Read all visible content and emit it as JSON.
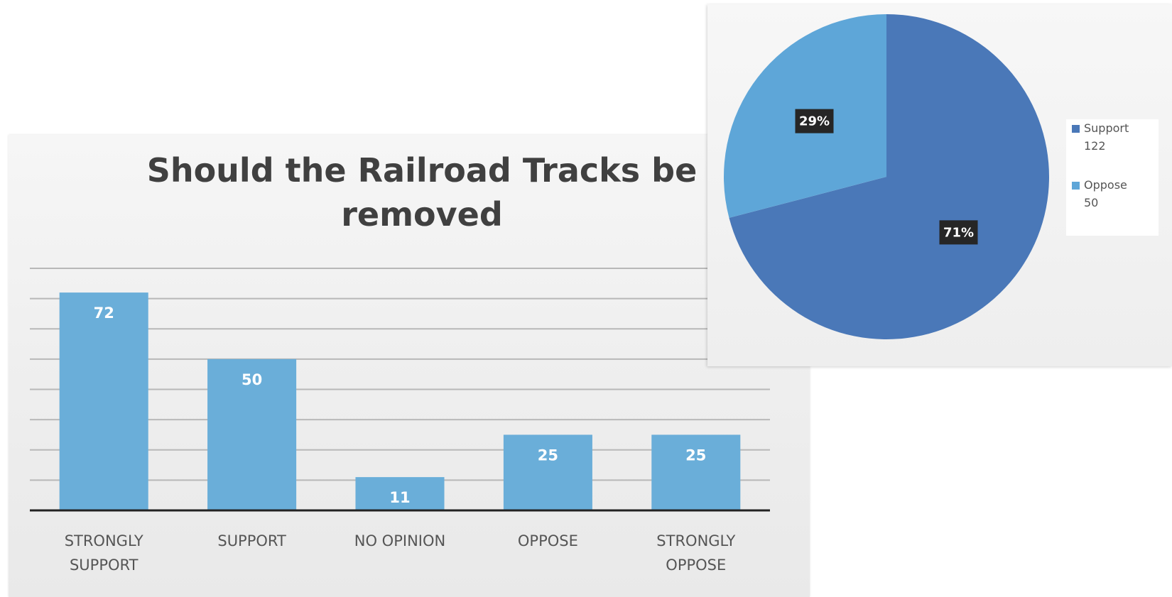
{
  "chart_data": [
    {
      "type": "bar",
      "title_lines": [
        "Should the Railroad Tracks be",
        "removed"
      ],
      "categories": [
        [
          "STRONGLY",
          "SUPPORT"
        ],
        [
          "SUPPORT"
        ],
        [
          "NO OPINION"
        ],
        [
          "OPPOSE"
        ],
        [
          "STRONGLY",
          "OPPOSE"
        ]
      ],
      "values": [
        72,
        50,
        11,
        25,
        25
      ],
      "data_labels": [
        "72",
        "50",
        "11",
        "25",
        "25"
      ],
      "ylim": [
        0,
        80
      ],
      "grid": true,
      "colors": {
        "bar": "#6aaed9",
        "grid": "#b8b8b8",
        "axis": "#222222"
      }
    },
    {
      "type": "pie",
      "slices": [
        {
          "label": "Support",
          "value": 122,
          "legend_value": "122",
          "percent_label": "71%",
          "color": "#4a78b8"
        },
        {
          "label": "Oppose",
          "value": 50,
          "legend_value": "50",
          "percent_label": "29%",
          "color": "#5ea6d8"
        }
      ],
      "legend_position": "right",
      "label_box_color": "#262626"
    }
  ]
}
